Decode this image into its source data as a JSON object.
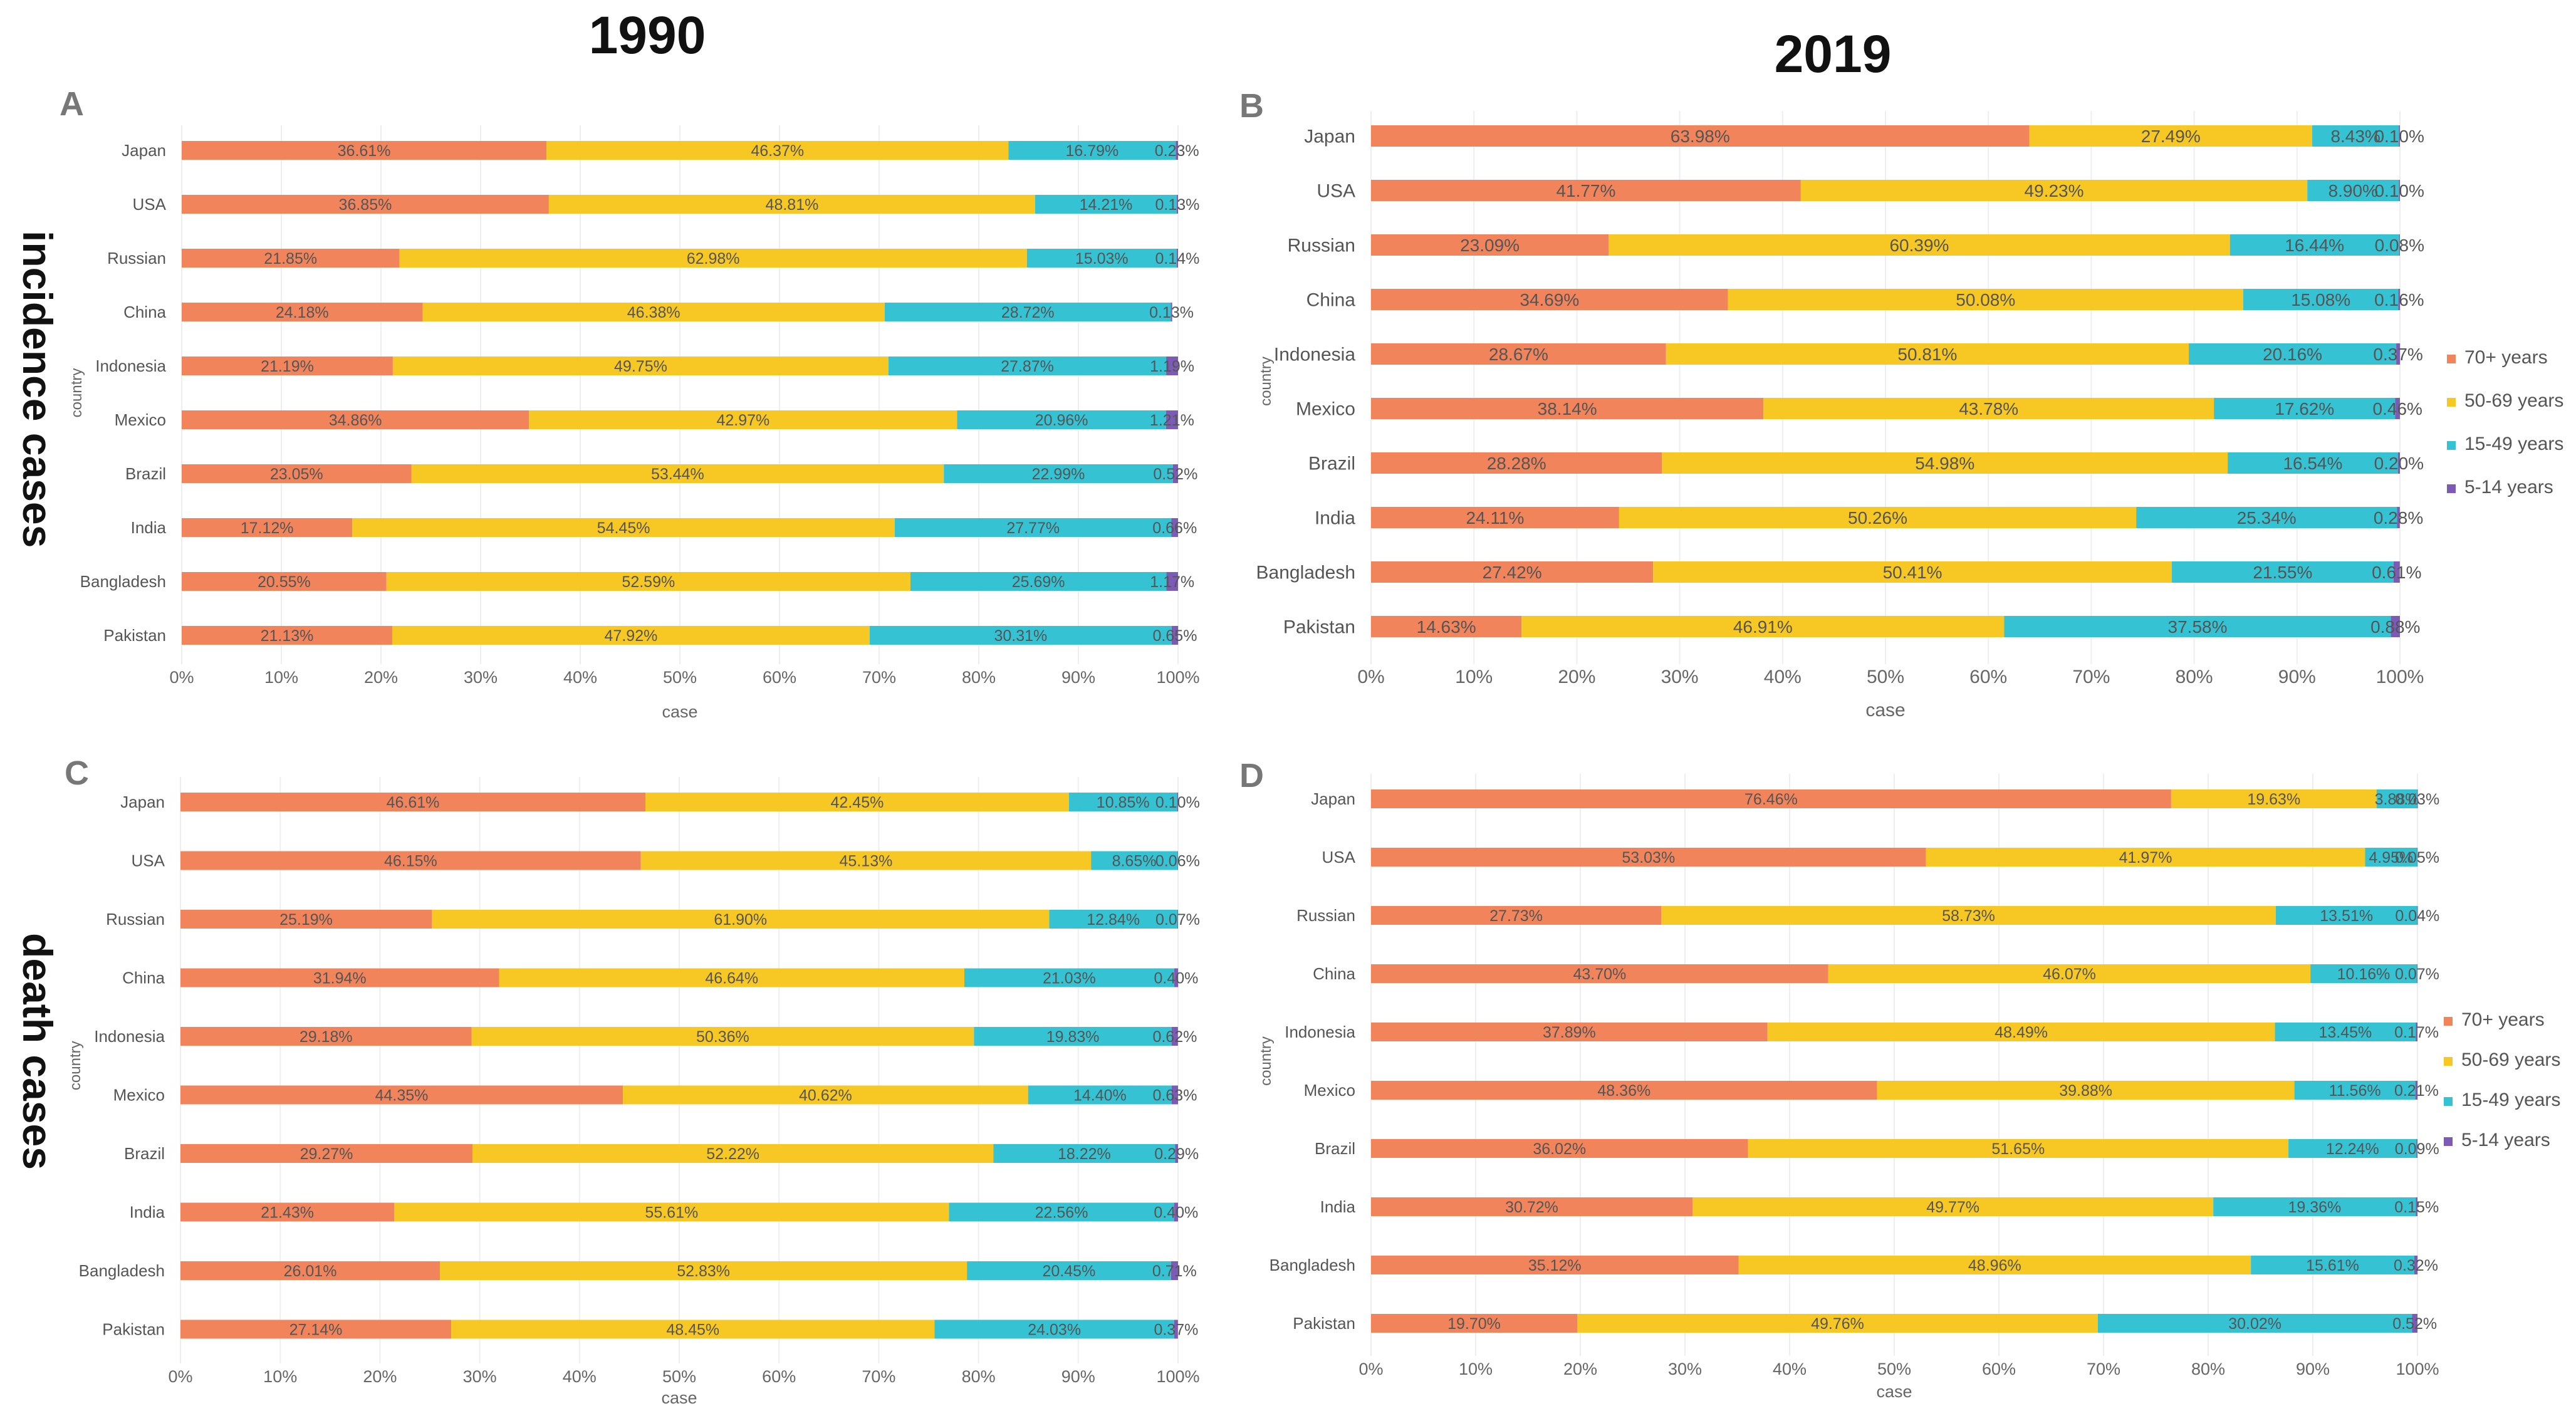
{
  "column_titles": {
    "left": "1990",
    "right": "2019"
  },
  "row_titles": {
    "top": "incidence cases",
    "bottom": "death cases"
  },
  "legend_items": [
    {
      "label": "70+ years",
      "color": "#F2845C"
    },
    {
      "label": "50-69 years",
      "color": "#F7C823"
    },
    {
      "label": "15-49 years",
      "color": "#35C3D3"
    },
    {
      "label": "5-14 years",
      "color": "#7B5BB5"
    }
  ],
  "chart_data": [
    {
      "panel": "A",
      "type": "bar",
      "orientation": "horizontal",
      "stacked": "percent",
      "xlabel": "case",
      "ylabel": "country",
      "ticks": [
        "0%",
        "10%",
        "20%",
        "30%",
        "40%",
        "50%",
        "60%",
        "70%",
        "80%",
        "90%",
        "100%"
      ],
      "categories": [
        "Japan",
        "USA",
        "Russian",
        "China",
        "Indonesia",
        "Mexico",
        "Brazil",
        "India",
        "Bangladesh",
        "Pakistan"
      ],
      "series": [
        {
          "name": "70+ years",
          "values": [
            36.61,
            36.85,
            21.85,
            24.18,
            21.19,
            34.86,
            23.05,
            17.12,
            20.55,
            21.13
          ]
        },
        {
          "name": "50-69 years",
          "values": [
            46.37,
            48.81,
            62.98,
            46.38,
            49.75,
            42.97,
            53.44,
            54.45,
            52.59,
            47.92
          ]
        },
        {
          "name": "15-49 years",
          "values": [
            16.79,
            14.21,
            15.03,
            28.72,
            27.87,
            20.96,
            22.99,
            27.77,
            25.69,
            30.31
          ]
        },
        {
          "name": "5-14 years",
          "values": [
            0.23,
            0.13,
            0.14,
            0.13,
            1.19,
            1.21,
            0.52,
            0.66,
            1.17,
            0.65
          ]
        }
      ],
      "labels": [
        [
          "36.61%",
          "46.37%",
          "16.79%",
          "0.23%"
        ],
        [
          "36.85%",
          "48.81%",
          "14.21%",
          "0.13%"
        ],
        [
          "21.85%",
          "62.98%",
          "15.03%",
          "0.14%"
        ],
        [
          "24.18%",
          "46.38%",
          "28.72%",
          "0.13%"
        ],
        [
          "21.19%",
          "49.75%",
          "27.87%",
          "1.19%"
        ],
        [
          "34.86%",
          "42.97%",
          "20.96%",
          "1.21%"
        ],
        [
          "23.05%",
          "53.44%",
          "22.99%",
          "0.52%"
        ],
        [
          "17.12%",
          "54.45%",
          "27.77%",
          "0.66%"
        ],
        [
          "20.55%",
          "52.59%",
          "25.69%",
          "1.17%"
        ],
        [
          "21.13%",
          "47.92%",
          "30.31%",
          "0.65%"
        ]
      ],
      "legend": "none"
    },
    {
      "panel": "B",
      "type": "bar",
      "orientation": "horizontal",
      "stacked": "percent",
      "xlabel": "case",
      "ylabel": "country",
      "ticks": [
        "0%",
        "10%",
        "20%",
        "30%",
        "40%",
        "50%",
        "60%",
        "70%",
        "80%",
        "90%",
        "100%"
      ],
      "categories": [
        "Japan",
        "USA",
        "Russian",
        "China",
        "Indonesia",
        "Mexico",
        "Brazil",
        "India",
        "Bangladesh",
        "Pakistan"
      ],
      "series": [
        {
          "name": "70+ years",
          "values": [
            63.98,
            41.77,
            23.09,
            34.69,
            28.67,
            38.14,
            28.28,
            24.11,
            27.42,
            14.63
          ]
        },
        {
          "name": "50-69 years",
          "values": [
            27.49,
            49.23,
            60.39,
            50.08,
            50.81,
            43.78,
            54.98,
            50.26,
            50.41,
            46.91
          ]
        },
        {
          "name": "15-49 years",
          "values": [
            8.43,
            8.9,
            16.44,
            15.08,
            20.16,
            17.62,
            16.54,
            25.34,
            21.55,
            37.58
          ]
        },
        {
          "name": "5-14 years",
          "values": [
            0.1,
            0.1,
            0.08,
            0.16,
            0.37,
            0.46,
            0.2,
            0.28,
            0.61,
            0.88
          ]
        }
      ],
      "labels": [
        [
          "63.98%",
          "27.49%",
          "8.43%",
          "0.10%"
        ],
        [
          "41.77%",
          "49.23%",
          "8.90%",
          "0.10%"
        ],
        [
          "23.09%",
          "60.39%",
          "16.44%",
          "0.08%"
        ],
        [
          "34.69%",
          "50.08%",
          "15.08%",
          "0.16%"
        ],
        [
          "28.67%",
          "50.81%",
          "20.16%",
          "0.37%"
        ],
        [
          "38.14%",
          "43.78%",
          "17.62%",
          "0.46%"
        ],
        [
          "28.28%",
          "54.98%",
          "16.54%",
          "0.20%"
        ],
        [
          "24.11%",
          "50.26%",
          "25.34%",
          "0.28%"
        ],
        [
          "27.42%",
          "50.41%",
          "21.55%",
          "0.61%"
        ],
        [
          "14.63%",
          "46.91%",
          "37.58%",
          "0.88%"
        ]
      ],
      "legend": "right"
    },
    {
      "panel": "C",
      "type": "bar",
      "orientation": "horizontal",
      "stacked": "percent",
      "xlabel": "case",
      "ylabel": "country",
      "ticks": [
        "0%",
        "10%",
        "20%",
        "30%",
        "40%",
        "50%",
        "60%",
        "70%",
        "80%",
        "90%",
        "100%"
      ],
      "categories": [
        "Japan",
        "USA",
        "Russian",
        "China",
        "Indonesia",
        "Mexico",
        "Brazil",
        "India",
        "Bangladesh",
        "Pakistan"
      ],
      "series": [
        {
          "name": "70+ years",
          "values": [
            46.61,
            46.15,
            25.19,
            31.94,
            29.18,
            44.35,
            29.27,
            21.43,
            26.01,
            27.14
          ]
        },
        {
          "name": "50-69 years",
          "values": [
            42.45,
            45.13,
            61.9,
            46.64,
            50.36,
            40.62,
            52.22,
            55.61,
            52.83,
            48.45
          ]
        },
        {
          "name": "15-49 years",
          "values": [
            10.85,
            8.65,
            12.84,
            21.03,
            19.83,
            14.4,
            18.22,
            22.56,
            20.45,
            24.03
          ]
        },
        {
          "name": "5-14 years",
          "values": [
            0.1,
            0.06,
            0.07,
            0.4,
            0.62,
            0.63,
            0.29,
            0.4,
            0.71,
            0.37
          ]
        }
      ],
      "labels": [
        [
          "46.61%",
          "42.45%",
          "10.85%",
          "0.10%"
        ],
        [
          "46.15%",
          "45.13%",
          "8.65%",
          "0.06%"
        ],
        [
          "25.19%",
          "61.90%",
          "12.84%",
          "0.07%"
        ],
        [
          "31.94%",
          "46.64%",
          "21.03%",
          "0.40%"
        ],
        [
          "29.18%",
          "50.36%",
          "19.83%",
          "0.62%"
        ],
        [
          "44.35%",
          "40.62%",
          "14.40%",
          "0.63%"
        ],
        [
          "29.27%",
          "52.22%",
          "18.22%",
          "0.29%"
        ],
        [
          "21.43%",
          "55.61%",
          "22.56%",
          "0.40%"
        ],
        [
          "26.01%",
          "52.83%",
          "20.45%",
          "0.71%"
        ],
        [
          "27.14%",
          "48.45%",
          "24.03%",
          "0.37%"
        ]
      ],
      "legend": "none"
    },
    {
      "panel": "D",
      "type": "bar",
      "orientation": "horizontal",
      "stacked": "percent",
      "xlabel": "case",
      "ylabel": "country",
      "ticks": [
        "0%",
        "10%",
        "20%",
        "30%",
        "40%",
        "50%",
        "60%",
        "70%",
        "80%",
        "90%",
        "100%"
      ],
      "categories": [
        "Japan",
        "USA",
        "Russian",
        "China",
        "Indonesia",
        "Mexico",
        "Brazil",
        "India",
        "Bangladesh",
        "Pakistan"
      ],
      "series": [
        {
          "name": "70+ years",
          "values": [
            76.46,
            53.03,
            27.73,
            43.7,
            37.89,
            48.36,
            36.02,
            30.72,
            35.12,
            19.7
          ]
        },
        {
          "name": "50-69 years",
          "values": [
            19.63,
            41.97,
            58.73,
            46.07,
            48.49,
            39.88,
            51.65,
            49.77,
            48.96,
            49.76
          ]
        },
        {
          "name": "15-49 years",
          "values": [
            3.88,
            4.95,
            13.51,
            10.16,
            13.45,
            11.56,
            12.24,
            19.36,
            15.61,
            30.02
          ]
        },
        {
          "name": "5-14 years",
          "values": [
            0.03,
            0.05,
            0.04,
            0.07,
            0.17,
            0.21,
            0.09,
            0.15,
            0.32,
            0.52
          ]
        }
      ],
      "labels": [
        [
          "76.46%",
          "19.63%",
          "3.88%",
          "0.03%"
        ],
        [
          "53.03%",
          "41.97%",
          "4.95%",
          "0.05%"
        ],
        [
          "27.73%",
          "58.73%",
          "13.51%",
          "0.04%"
        ],
        [
          "43.70%",
          "46.07%",
          "10.16%",
          "0.07%"
        ],
        [
          "37.89%",
          "48.49%",
          "13.45%",
          "0.17%"
        ],
        [
          "48.36%",
          "39.88%",
          "11.56%",
          "0.21%"
        ],
        [
          "36.02%",
          "51.65%",
          "12.24%",
          "0.09%"
        ],
        [
          "30.72%",
          "49.77%",
          "19.36%",
          "0.15%"
        ],
        [
          "35.12%",
          "48.96%",
          "15.61%",
          "0.32%"
        ],
        [
          "19.70%",
          "49.76%",
          "30.02%",
          "0.52%"
        ]
      ],
      "legend": "right"
    }
  ]
}
